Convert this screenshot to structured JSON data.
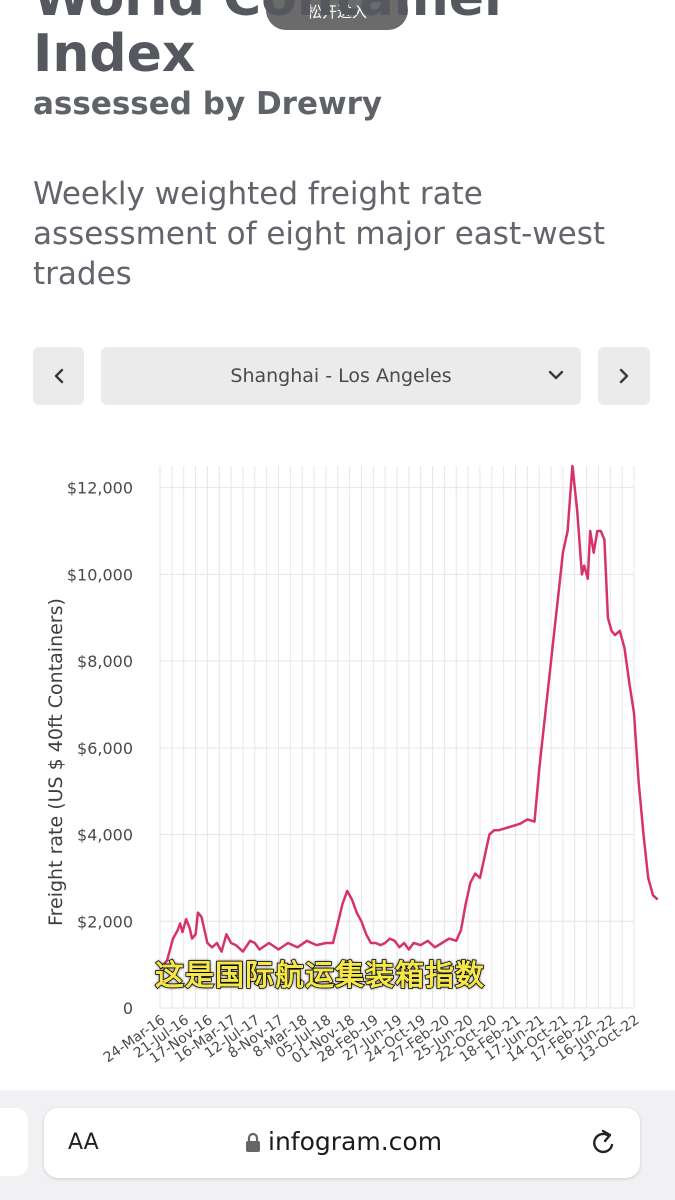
{
  "header": {
    "title_line1": "World Container",
    "title_line2": "Index",
    "subtitle": "assessed by Drewry",
    "description": "Weekly weighted freight rate assessment of eight major east-west trades"
  },
  "overlay_pill": "松开进入",
  "route_selector": {
    "selected": "Shanghai - Los Angeles"
  },
  "caption": "这是国际航运集装箱指数",
  "browser": {
    "text_size_label": "AA",
    "url": "infogram.com"
  },
  "chart_data": {
    "type": "line",
    "ylabel": "Freight rate (US $ 40ft Containers)",
    "ylim": [
      0,
      12500
    ],
    "y_ticks": [
      0,
      2000,
      4000,
      6000,
      8000,
      10000,
      12000
    ],
    "y_tick_labels": [
      "0",
      "$2,000",
      "$4,000",
      "$6,000",
      "$8,000",
      "$10,000",
      "$12,000"
    ],
    "x_tick_labels": [
      "24-Mar-16",
      "21-Jul-16",
      "17-Nov-16",
      "16-Mar-17",
      "12-Jul-17",
      "8-Nov-17",
      "8-Mar-18",
      "05-Jul-18",
      "01-Nov-18",
      "28-Feb-19",
      "27-Jun-19",
      "24-Oct-19",
      "27-Feb-20",
      "25-Jun-20",
      "22-Oct-20",
      "18-Feb-21",
      "17-Jun-21",
      "14-Oct-21",
      "17-Feb-22",
      "16-Jun-22",
      "13-Oct-22"
    ],
    "grid": true,
    "line_color": "#d6336c",
    "series": [
      {
        "x": [
          0,
          0.3,
          0.55,
          0.75,
          0.85,
          0.95,
          1.1,
          1.25,
          1.35,
          1.5,
          1.6,
          1.75,
          2.0,
          2.2,
          2.4,
          2.6,
          2.8,
          3.0,
          3.2,
          3.5,
          3.8,
          4.0,
          4.2,
          4.6,
          5.0,
          5.4,
          5.8,
          6.2,
          6.6,
          7.0,
          7.3,
          7.5,
          7.7,
          7.9,
          8.1,
          8.3,
          8.5,
          8.7,
          8.9,
          9.1,
          9.3,
          9.5,
          9.7,
          9.9,
          10.1,
          10.3,
          10.5,
          10.7,
          11.0,
          11.3,
          11.6,
          11.9,
          12.2,
          12.5,
          12.7,
          12.9,
          13.1,
          13.3,
          13.5,
          13.7,
          13.9,
          14.1,
          14.3,
          14.6,
          14.9,
          15.2,
          15.5,
          15.8,
          16.0,
          16.2,
          16.4,
          16.6,
          16.8,
          17.0,
          17.2,
          17.4,
          17.6,
          17.8,
          17.9,
          18.05,
          18.15,
          18.3,
          18.45,
          18.6,
          18.75,
          18.9,
          19.05,
          19.2,
          19.4,
          19.6,
          19.8,
          20.0,
          20.2,
          20.4,
          20.6,
          20.8,
          21.0
        ],
        "y": [
          900,
          1100,
          1600,
          1800,
          1950,
          1750,
          2050,
          1850,
          1600,
          1700,
          2200,
          2100,
          1500,
          1400,
          1500,
          1300,
          1700,
          1500,
          1450,
          1300,
          1550,
          1500,
          1350,
          1500,
          1350,
          1500,
          1400,
          1550,
          1450,
          1500,
          1500,
          1950,
          2400,
          2700,
          2500,
          2200,
          2000,
          1700,
          1500,
          1500,
          1450,
          1500,
          1600,
          1550,
          1400,
          1500,
          1350,
          1500,
          1450,
          1550,
          1400,
          1500,
          1600,
          1550,
          1800,
          2400,
          2900,
          3100,
          3000,
          3500,
          4000,
          4100,
          4100,
          4150,
          4200,
          4250,
          4350,
          4300,
          5500,
          6500,
          7500,
          8500,
          9500,
          10500,
          11000,
          12500,
          11500,
          10000,
          10200,
          9900,
          11000,
          10500,
          11000,
          11000,
          10800,
          9000,
          8700,
          8600,
          8700,
          8300,
          7500,
          6800,
          5200,
          4000,
          3000,
          2600,
          2500
        ]
      }
    ]
  }
}
